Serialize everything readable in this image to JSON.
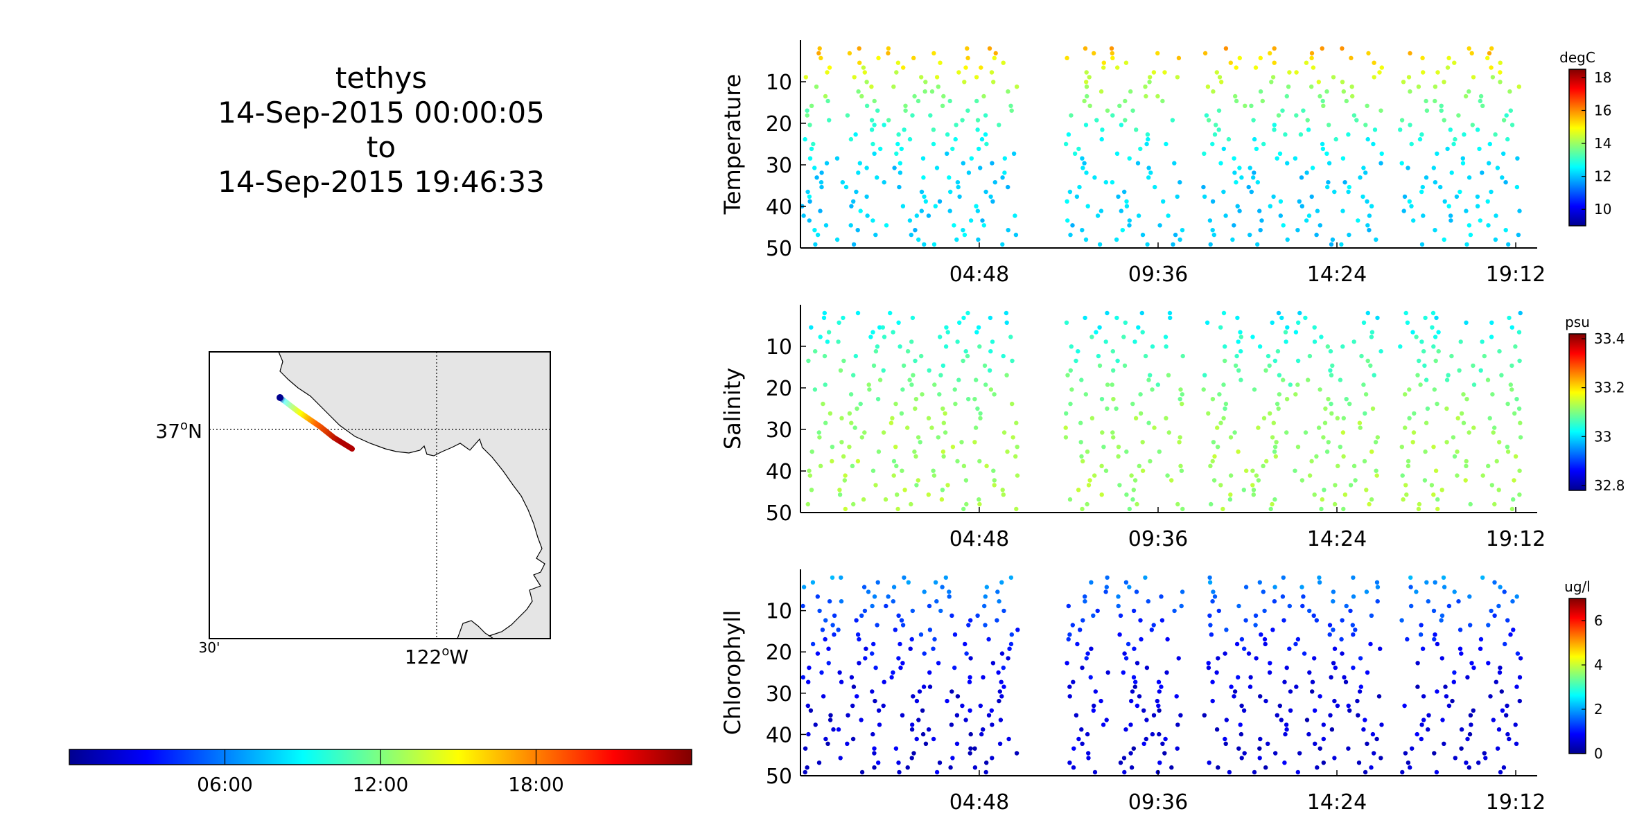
{
  "header": {
    "vehicle": "tethys",
    "start": "14-Sep-2015 00:00:05",
    "connector": "to",
    "end": "14-Sep-2015 19:46:33"
  },
  "map": {
    "lat_label": "37°N",
    "lat_deg": "37",
    "lat_hemi": "N",
    "lon_label": "122°W",
    "lon_deg": "122",
    "lon_hemi": "W",
    "corner_label": "30'",
    "land_color": "#e5e5e5",
    "track_start_marker_color": "#00008f"
  },
  "time_colorbar": {
    "colormap": "jet",
    "tick_labels": [
      "06:00",
      "12:00",
      "18:00"
    ]
  },
  "chart_data": [
    {
      "type": "scatter",
      "ylabel": "Temperature",
      "units": "degC",
      "y_ticks": [
        10,
        20,
        30,
        40,
        50
      ],
      "y_range": [
        0,
        50
      ],
      "y_inverted": true,
      "x_tick_labels": [
        "04:48",
        "09:36",
        "14:24",
        "19:12"
      ],
      "x_range": [
        "00:00:05",
        "19:46:33"
      ],
      "colorbar_ticks": [
        10,
        12,
        14,
        16,
        18
      ],
      "colorbar_range": [
        9,
        18.5
      ],
      "surface_value": 16.5,
      "deep_value": 12.2
    },
    {
      "type": "scatter",
      "ylabel": "Salinity",
      "units": "psu",
      "y_ticks": [
        10,
        20,
        30,
        40,
        50
      ],
      "y_range": [
        0,
        50
      ],
      "y_inverted": true,
      "x_tick_labels": [
        "04:48",
        "09:36",
        "14:24",
        "19:12"
      ],
      "x_range": [
        "00:00:05",
        "19:46:33"
      ],
      "colorbar_ticks": [
        33.4,
        33.2,
        33,
        32.8
      ],
      "colorbar_range": [
        32.78,
        33.42
      ],
      "surface_value": 32.98,
      "deep_value": 33.12
    },
    {
      "type": "scatter",
      "ylabel": "Chlorophyll",
      "units": "ug/l",
      "y_ticks": [
        10,
        20,
        30,
        40,
        50
      ],
      "y_range": [
        0,
        50
      ],
      "y_inverted": true,
      "x_tick_labels": [
        "04:48",
        "09:36",
        "14:24",
        "19:12"
      ],
      "x_range": [
        "00:00:05",
        "19:46:33"
      ],
      "colorbar_ticks": [
        0,
        2,
        4,
        6
      ],
      "colorbar_range": [
        0,
        7
      ],
      "surface_value": 2.2,
      "deep_value": 0.6
    }
  ]
}
